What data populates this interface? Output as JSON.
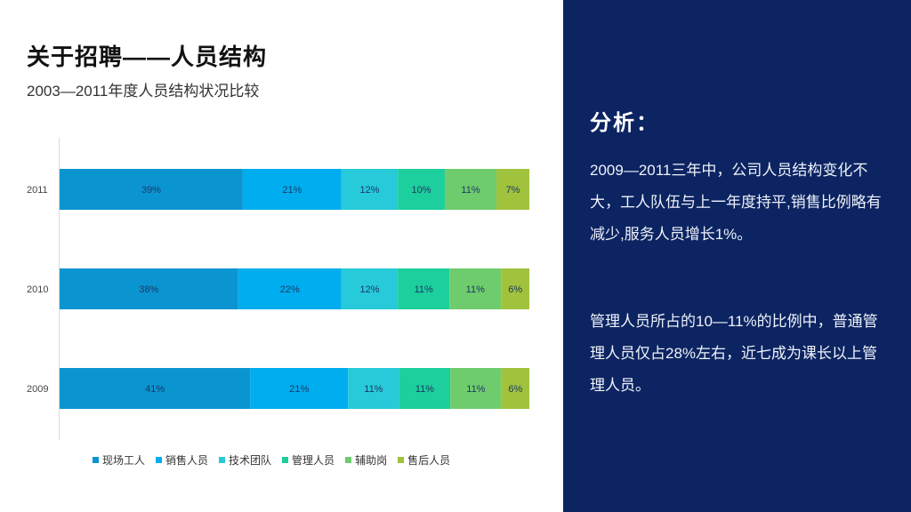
{
  "page": {
    "title": "关于招聘——人员结构",
    "subtitle": "2003—2011年度人员结构状况比较"
  },
  "panel": {
    "heading": "分析：",
    "paragraph1": "2009—2011三年中，公司人员结构变化不大，工人队伍与上一年度持平,销售比例略有减少,服务人员增长1%。",
    "paragraph2": "管理人员所占的10—11%的比例中，普通管理人员仅占28%左右，近七成为课长以上管理人员。"
  },
  "chart_data": {
    "type": "bar",
    "orientation": "horizontal",
    "stacked": true,
    "categories": [
      "2011",
      "2010",
      "2009"
    ],
    "series": [
      {
        "name": "现场工人",
        "values": [
          39,
          38,
          41
        ],
        "labels": [
          "39%",
          "38%",
          "41%"
        ],
        "color": "#0a95d1"
      },
      {
        "name": "销售人员",
        "values": [
          21,
          22,
          21
        ],
        "labels": [
          "21%",
          "22%",
          "21%"
        ],
        "color": "#00adef"
      },
      {
        "name": "技术团队",
        "values": [
          12,
          12,
          11
        ],
        "labels": [
          "12%",
          "12%",
          "11%"
        ],
        "color": "#26cad9"
      },
      {
        "name": "管理人员",
        "values": [
          10,
          11,
          11
        ],
        "labels": [
          "10%",
          "11%",
          "11%"
        ],
        "color": "#1ccf9c"
      },
      {
        "name": "辅助岗",
        "values": [
          11,
          11,
          11
        ],
        "labels": [
          "11%",
          "11%",
          "11%"
        ],
        "color": "#6fcc6c"
      },
      {
        "name": "售后人员",
        "values": [
          7,
          6,
          6
        ],
        "labels": [
          "7%",
          "6%",
          "6%"
        ],
        "color": "#a0c23c"
      }
    ],
    "legend": "bottom",
    "grid": false,
    "label_color": "#1c3966"
  }
}
